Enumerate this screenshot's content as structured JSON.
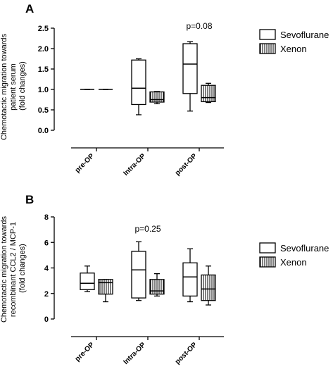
{
  "chart_data": [
    {
      "type": "box",
      "panel": "A",
      "ylabel_lines": [
        "Chemotactic migration towards",
        "patient serum",
        "(fold changes)"
      ],
      "ylim": [
        0,
        2.5
      ],
      "yticks": [
        "0.0",
        "0.5",
        "1.0",
        "1.5",
        "2.0",
        "2.5"
      ],
      "categories": [
        "pre-OP",
        "Intra-OP",
        "post-OP"
      ],
      "annotation": {
        "text": "p=0.08",
        "category": 2
      },
      "series": [
        {
          "name": "Sevoflurane",
          "pattern": "open",
          "boxes": [
            {
              "min": 1.0,
              "q1": 1.0,
              "median": 1.0,
              "q3": 1.0,
              "max": 1.0
            },
            {
              "min": 0.38,
              "q1": 0.63,
              "median": 1.03,
              "q3": 1.72,
              "max": 1.75
            },
            {
              "min": 0.47,
              "q1": 0.9,
              "median": 1.62,
              "q3": 2.12,
              "max": 2.17
            }
          ]
        },
        {
          "name": "Xenon",
          "pattern": "vertical-hatch",
          "boxes": [
            {
              "min": 1.0,
              "q1": 1.0,
              "median": 1.0,
              "q3": 1.0,
              "max": 1.0
            },
            {
              "min": 0.65,
              "q1": 0.69,
              "median": 0.75,
              "q3": 0.94,
              "max": 0.95
            },
            {
              "min": 0.68,
              "q1": 0.7,
              "median": 0.8,
              "q3": 1.1,
              "max": 1.15
            }
          ]
        }
      ]
    },
    {
      "type": "box",
      "panel": "B",
      "ylabel_lines": [
        "Chemotactic migration towards",
        "recombinant CCL2 / MCP-1",
        "(fold changes)"
      ],
      "ylim": [
        0,
        8
      ],
      "yticks": [
        "0",
        "2",
        "4",
        "6",
        "8"
      ],
      "categories": [
        "pre-OP",
        "Intra-OP",
        "post-OP"
      ],
      "annotation": {
        "text": "p=0.25",
        "category": 1
      },
      "series": [
        {
          "name": "Sevoflurane",
          "pattern": "open",
          "boxes": [
            {
              "min": 2.15,
              "q1": 2.3,
              "median": 2.8,
              "q3": 3.6,
              "max": 4.15
            },
            {
              "min": 1.45,
              "q1": 1.65,
              "median": 3.85,
              "q3": 5.3,
              "max": 6.05
            },
            {
              "min": 1.35,
              "q1": 1.8,
              "median": 3.3,
              "q3": 4.4,
              "max": 5.5
            }
          ]
        },
        {
          "name": "Xenon",
          "pattern": "vertical-hatch",
          "boxes": [
            {
              "min": 1.35,
              "q1": 1.95,
              "median": 2.85,
              "q3": 3.1,
              "max": 3.1
            },
            {
              "min": 1.8,
              "q1": 1.95,
              "median": 2.2,
              "q3": 3.1,
              "max": 3.55
            },
            {
              "min": 1.1,
              "q1": 1.45,
              "median": 2.35,
              "q3": 3.45,
              "max": 4.15
            }
          ]
        }
      ]
    }
  ],
  "legend": [
    {
      "label": "Sevoflurane",
      "pattern": "open"
    },
    {
      "label": "Xenon",
      "pattern": "vertical-hatch"
    }
  ]
}
